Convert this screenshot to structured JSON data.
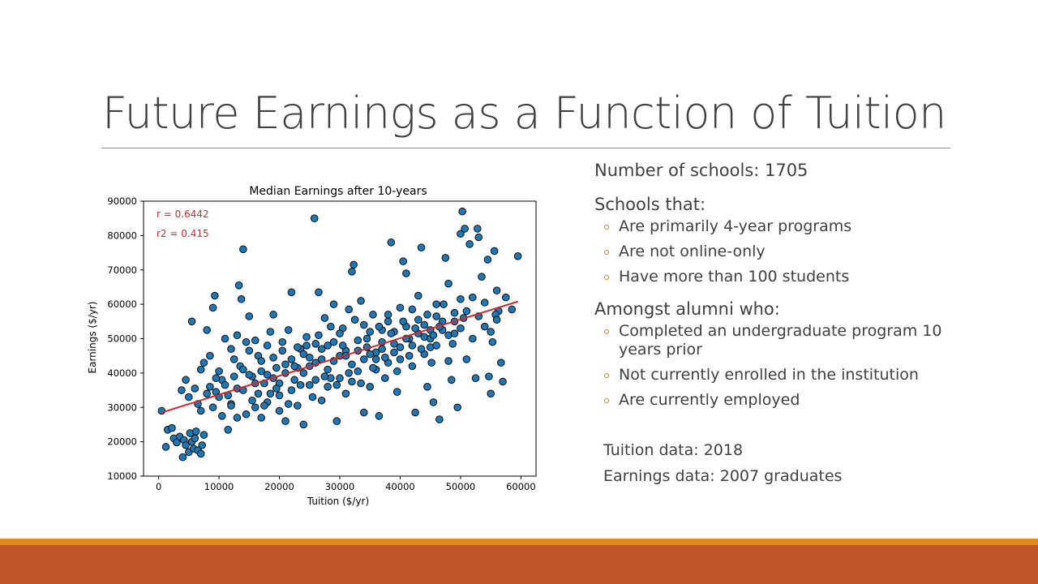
{
  "slide": {
    "title": "Future Earnings as a Function of Tuition"
  },
  "panel": {
    "count_line": "Number of schools: 1705",
    "schools_heading": "Schools that:",
    "schools_items": [
      "Are primarily 4-year programs",
      "Are not online-only",
      "Have more than 100 students"
    ],
    "alumni_heading": "Amongst alumni who:",
    "alumni_items": [
      "Completed an undergraduate program 10 years prior",
      "Not currently enrolled in the institution",
      "Are currently employed"
    ],
    "notes": [
      "Tuition data: 2018",
      "Earnings data: 2007 graduates"
    ]
  },
  "colors": {
    "accent": "#d9822b",
    "band_top": "#e08a1e",
    "band_bottom": "#be5628",
    "points": "#1f77b4",
    "fit_line": "#d62728"
  },
  "chart_data": {
    "type": "scatter",
    "title": "Median Earnings after 10-years",
    "xlabel": "Tuition ($/yr)",
    "ylabel": "Earnings ($/yr)",
    "xlim": [
      -2500,
      62500
    ],
    "ylim": [
      10000,
      90000
    ],
    "xticks": [
      0,
      10000,
      20000,
      30000,
      40000,
      50000,
      60000
    ],
    "yticks": [
      10000,
      20000,
      30000,
      40000,
      50000,
      60000,
      70000,
      80000,
      90000
    ],
    "annotations": [
      "r = 0.6442",
      "r2 = 0.415"
    ],
    "fit_line": {
      "x": [
        500,
        59500
      ],
      "y": [
        28500,
        60800
      ]
    },
    "grid": false,
    "points": [
      [
        500,
        29000
      ],
      [
        1200,
        18500
      ],
      [
        1500,
        23500
      ],
      [
        2200,
        24000
      ],
      [
        2500,
        21000
      ],
      [
        3000,
        19800
      ],
      [
        3500,
        21500
      ],
      [
        4000,
        15500
      ],
      [
        4200,
        20500
      ],
      [
        4500,
        19000
      ],
      [
        5000,
        17000
      ],
      [
        5200,
        22500
      ],
      [
        5500,
        20000
      ],
      [
        5800,
        18000
      ],
      [
        6000,
        21000
      ],
      [
        6200,
        23000
      ],
      [
        6500,
        17500
      ],
      [
        7000,
        16500
      ],
      [
        7200,
        19000
      ],
      [
        7500,
        22000
      ],
      [
        4500,
        38000
      ],
      [
        3800,
        35000
      ],
      [
        5000,
        33000
      ],
      [
        5500,
        55000
      ],
      [
        6500,
        31000
      ],
      [
        7500,
        43000
      ],
      [
        8000,
        52500
      ],
      [
        9000,
        59000
      ],
      [
        9300,
        62500
      ],
      [
        8500,
        36000
      ],
      [
        7000,
        41000
      ],
      [
        9500,
        34500
      ],
      [
        10000,
        33000
      ],
      [
        11000,
        50000
      ],
      [
        11500,
        23500
      ],
      [
        12000,
        31000
      ],
      [
        12500,
        44000
      ],
      [
        13000,
        51000
      ],
      [
        13300,
        65500
      ],
      [
        13700,
        61500
      ],
      [
        14000,
        76000
      ],
      [
        14500,
        49000
      ],
      [
        15000,
        56500
      ],
      [
        15500,
        39000
      ],
      [
        16000,
        30000
      ],
      [
        16500,
        45000
      ],
      [
        17000,
        27000
      ],
      [
        17500,
        37000
      ],
      [
        18000,
        48000
      ],
      [
        18500,
        34000
      ],
      [
        19000,
        57000
      ],
      [
        19500,
        41500
      ],
      [
        20000,
        29000
      ],
      [
        20500,
        46500
      ],
      [
        21000,
        26000
      ],
      [
        21500,
        52500
      ],
      [
        22000,
        63500
      ],
      [
        22500,
        38000
      ],
      [
        23000,
        30500
      ],
      [
        23500,
        47000
      ],
      [
        24000,
        25000
      ],
      [
        24500,
        50500
      ],
      [
        25000,
        36500
      ],
      [
        25800,
        85000
      ],
      [
        26000,
        43000
      ],
      [
        26500,
        63500
      ],
      [
        27000,
        32000
      ],
      [
        27500,
        56000
      ],
      [
        28000,
        48000
      ],
      [
        28500,
        38500
      ],
      [
        29000,
        60000
      ],
      [
        29500,
        26000
      ],
      [
        30000,
        45000
      ],
      [
        30500,
        53000
      ],
      [
        31000,
        34000
      ],
      [
        31500,
        58500
      ],
      [
        32000,
        69500
      ],
      [
        32300,
        71500
      ],
      [
        33000,
        40500
      ],
      [
        33500,
        61000
      ],
      [
        34000,
        28500
      ],
      [
        34500,
        50000
      ],
      [
        35000,
        36000
      ],
      [
        35500,
        57000
      ],
      [
        36000,
        44000
      ],
      [
        36500,
        27500
      ],
      [
        37000,
        52500
      ],
      [
        37500,
        38500
      ],
      [
        38000,
        55000
      ],
      [
        38500,
        78000
      ],
      [
        39000,
        46000
      ],
      [
        39500,
        34500
      ],
      [
        40000,
        59000
      ],
      [
        40500,
        72500
      ],
      [
        41000,
        69000
      ],
      [
        41500,
        50000
      ],
      [
        42000,
        42000
      ],
      [
        42500,
        28500
      ],
      [
        43000,
        62500
      ],
      [
        43500,
        76500
      ],
      [
        44000,
        54000
      ],
      [
        44500,
        36000
      ],
      [
        45000,
        47500
      ],
      [
        45500,
        31500
      ],
      [
        46000,
        56500
      ],
      [
        46500,
        26500
      ],
      [
        47000,
        52500
      ],
      [
        47500,
        73500
      ],
      [
        48000,
        66000
      ],
      [
        48500,
        38000
      ],
      [
        49000,
        55000
      ],
      [
        49500,
        30000
      ],
      [
        50000,
        80500
      ],
      [
        50300,
        87000
      ],
      [
        50700,
        82000
      ],
      [
        51000,
        44000
      ],
      [
        51500,
        77500
      ],
      [
        52000,
        62000
      ],
      [
        52500,
        38500
      ],
      [
        53000,
        79500
      ],
      [
        53500,
        68000
      ],
      [
        54000,
        53500
      ],
      [
        54500,
        73000
      ],
      [
        55000,
        34000
      ],
      [
        55300,
        49000
      ],
      [
        55600,
        75500
      ],
      [
        56000,
        64000
      ],
      [
        56300,
        58000
      ],
      [
        56700,
        43000
      ],
      [
        57000,
        37500
      ],
      [
        57500,
        62000
      ],
      [
        59500,
        74000
      ],
      [
        58500,
        58500
      ],
      [
        52800,
        82000
      ],
      [
        54700,
        39000
      ],
      [
        55800,
        57000
      ],
      [
        50500,
        56000
      ],
      [
        48700,
        48500
      ],
      [
        47200,
        60000
      ],
      [
        45200,
        43000
      ],
      [
        10500,
        38000
      ],
      [
        12000,
        30500
      ],
      [
        13500,
        42000
      ],
      [
        14500,
        28000
      ],
      [
        15000,
        46500
      ],
      [
        16500,
        34000
      ],
      [
        17000,
        40500
      ],
      [
        18000,
        31500
      ],
      [
        19000,
        44500
      ],
      [
        20000,
        37000
      ],
      [
        21000,
        42500
      ],
      [
        22000,
        35000
      ],
      [
        23000,
        47500
      ],
      [
        24000,
        40000
      ],
      [
        25000,
        44500
      ],
      [
        26000,
        38000
      ],
      [
        27000,
        47000
      ],
      [
        28000,
        41000
      ],
      [
        29000,
        49000
      ],
      [
        30000,
        38500
      ],
      [
        31000,
        46500
      ],
      [
        32000,
        42500
      ],
      [
        33000,
        49500
      ],
      [
        34000,
        44000
      ],
      [
        35000,
        52000
      ],
      [
        36000,
        46000
      ],
      [
        37000,
        49000
      ],
      [
        38000,
        43000
      ],
      [
        39000,
        52000
      ],
      [
        40000,
        47500
      ],
      [
        41000,
        53500
      ],
      [
        42000,
        48000
      ],
      [
        43000,
        55500
      ],
      [
        44000,
        50500
      ],
      [
        45000,
        52500
      ],
      [
        46000,
        48000
      ],
      [
        47000,
        55000
      ],
      [
        48000,
        51000
      ],
      [
        49000,
        57500
      ],
      [
        50000,
        53000
      ],
      [
        51000,
        58000
      ],
      [
        52000,
        50000
      ],
      [
        53000,
        56500
      ],
      [
        54000,
        60500
      ],
      [
        55000,
        52000
      ],
      [
        56000,
        55500
      ],
      [
        11000,
        36500
      ],
      [
        13000,
        35500
      ],
      [
        15000,
        39500
      ],
      [
        17000,
        43500
      ],
      [
        19000,
        38500
      ],
      [
        21000,
        40000
      ],
      [
        23000,
        41500
      ],
      [
        25000,
        42000
      ],
      [
        27000,
        44000
      ],
      [
        29000,
        43500
      ],
      [
        31000,
        45000
      ],
      [
        33000,
        46500
      ],
      [
        35000,
        45500
      ],
      [
        37000,
        47000
      ],
      [
        39000,
        48500
      ],
      [
        41000,
        50000
      ],
      [
        43000,
        51500
      ],
      [
        45000,
        50000
      ],
      [
        47000,
        52500
      ],
      [
        49000,
        51500
      ],
      [
        8000,
        34000
      ],
      [
        9000,
        30000
      ],
      [
        10000,
        40500
      ],
      [
        11500,
        33500
      ],
      [
        12500,
        39000
      ],
      [
        14000,
        35000
      ],
      [
        16000,
        37000
      ],
      [
        18000,
        39500
      ],
      [
        20000,
        33500
      ],
      [
        22000,
        44000
      ],
      [
        24000,
        45500
      ],
      [
        26000,
        48500
      ],
      [
        28000,
        36000
      ],
      [
        30000,
        51500
      ],
      [
        32000,
        37500
      ],
      [
        34000,
        54000
      ],
      [
        36000,
        41000
      ],
      [
        38000,
        57000
      ],
      [
        40000,
        44000
      ],
      [
        42000,
        58500
      ],
      [
        44000,
        45500
      ],
      [
        46000,
        60000
      ],
      [
        48000,
        43500
      ],
      [
        50000,
        61500
      ],
      [
        6000,
        35500
      ],
      [
        7000,
        29000
      ],
      [
        8500,
        45000
      ],
      [
        9500,
        38500
      ],
      [
        10500,
        27500
      ],
      [
        12000,
        47000
      ],
      [
        13000,
        27000
      ],
      [
        14000,
        41000
      ],
      [
        15500,
        32000
      ],
      [
        16000,
        49500
      ],
      [
        17500,
        30500
      ],
      [
        18500,
        52000
      ],
      [
        19500,
        35500
      ],
      [
        20500,
        49000
      ],
      [
        21500,
        31000
      ],
      [
        22500,
        42000
      ],
      [
        23500,
        36500
      ],
      [
        24500,
        48000
      ],
      [
        25500,
        33000
      ],
      [
        26500,
        51000
      ],
      [
        27500,
        39000
      ],
      [
        28500,
        53500
      ],
      [
        29500,
        36500
      ],
      [
        30500,
        48000
      ],
      [
        31500,
        40000
      ],
      [
        32500,
        55500
      ],
      [
        33500,
        37000
      ],
      [
        34500,
        47500
      ],
      [
        35500,
        41500
      ],
      [
        36500,
        53500
      ],
      [
        37500,
        44500
      ],
      [
        38500,
        51500
      ],
      [
        39500,
        40500
      ],
      [
        40500,
        55000
      ],
      [
        41500,
        45000
      ],
      [
        42500,
        53000
      ],
      [
        43500,
        47000
      ],
      [
        44500,
        57000
      ],
      [
        45500,
        51000
      ],
      [
        46500,
        53500
      ]
    ]
  }
}
